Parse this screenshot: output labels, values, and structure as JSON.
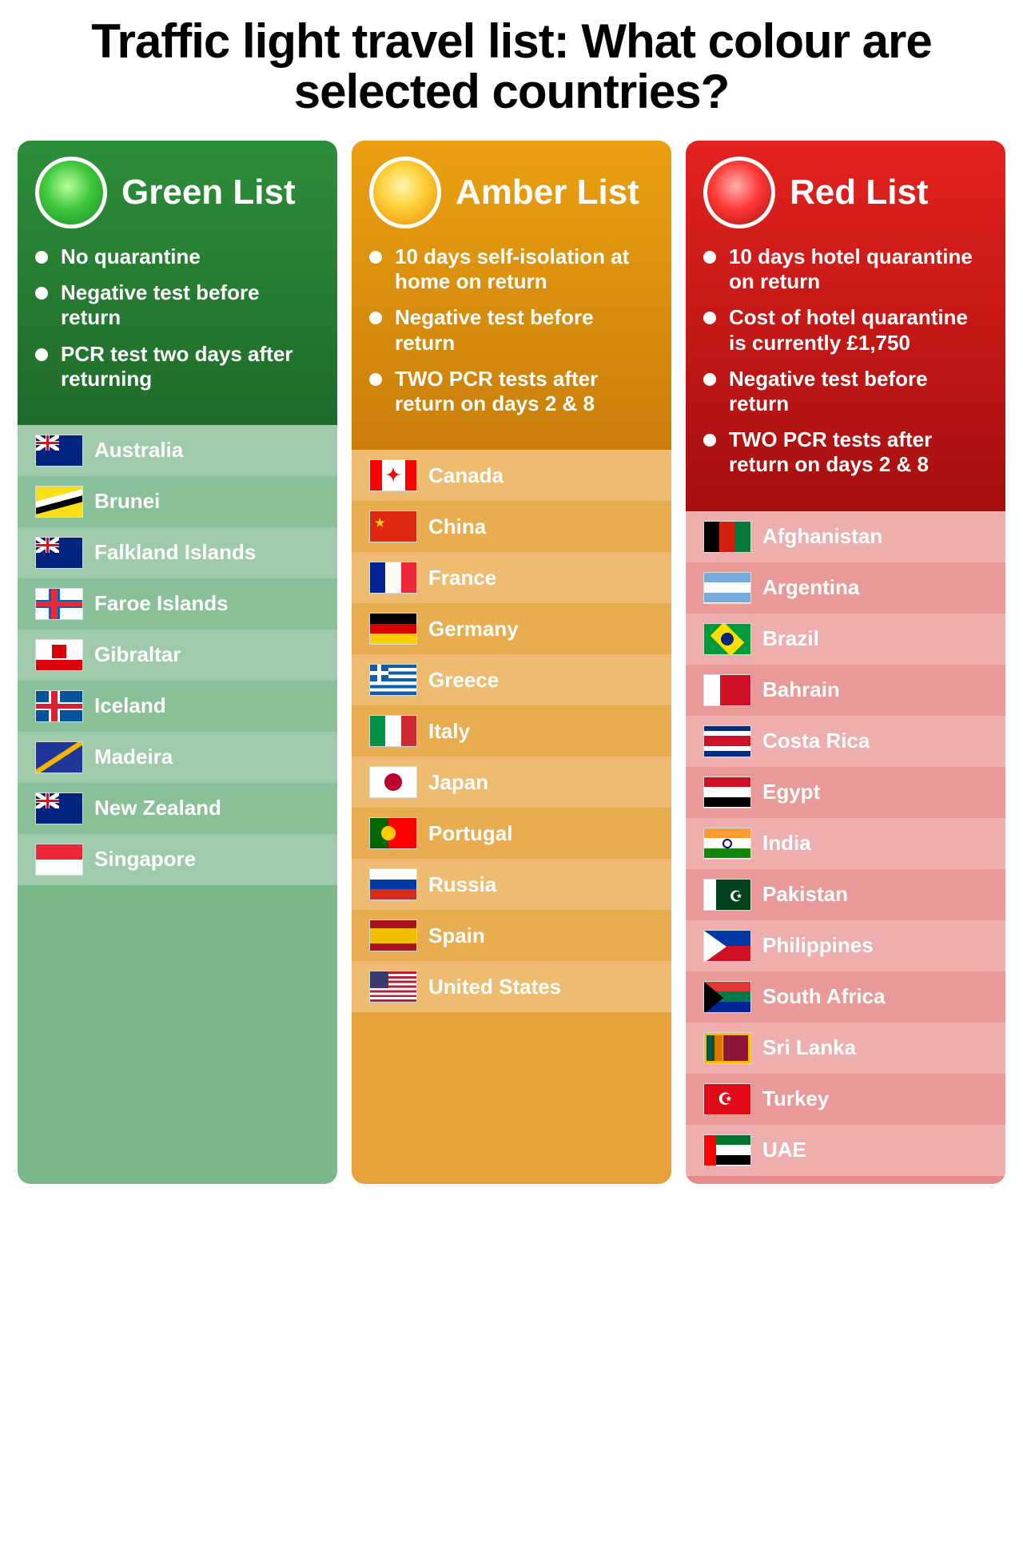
{
  "title": "Traffic light travel list: What colour are selected countries?",
  "columns": [
    {
      "id": "green",
      "title": "Green List",
      "header_bg": "linear-gradient(180deg,#2d8e3a 0%,#1f6b2a 100%)",
      "light_bg": "radial-gradient(circle at 45% 40%, #b7ff9a 0%, #3ec73c 45%, #1f8a28 100%)",
      "body_bg": "#7ab889",
      "stripe_a": "rgba(255,255,255,0.28)",
      "stripe_b": "rgba(255,255,255,0.12)",
      "rules": [
        "No quarantine",
        "Negative test before return",
        "PCR test two days after returning"
      ],
      "countries": [
        {
          "name": "Australia",
          "flag": "au"
        },
        {
          "name": "Brunei",
          "flag": "bn"
        },
        {
          "name": "Falkland Islands",
          "flag": "fk"
        },
        {
          "name": "Faroe Islands",
          "flag": "fo"
        },
        {
          "name": "Gibraltar",
          "flag": "gi"
        },
        {
          "name": "Iceland",
          "flag": "is"
        },
        {
          "name": "Madeira",
          "flag": "pt-30"
        },
        {
          "name": "New Zealand",
          "flag": "nz"
        },
        {
          "name": "Singapore",
          "flag": "sg"
        }
      ]
    },
    {
      "id": "amber",
      "title": "Amber List",
      "header_bg": "linear-gradient(180deg,#eaa011 0%,#c97e0a 100%)",
      "light_bg": "radial-gradient(circle at 45% 40%, #fff7b0 0%, #ffd23e 40%, #e68a00 100%)",
      "body_bg": "#e6a23a",
      "stripe_a": "rgba(255,255,255,0.28)",
      "stripe_b": "rgba(255,255,255,0.12)",
      "rules": [
        "10 days self-isolation at home on return",
        "Negative test before return",
        "TWO PCR tests after return on days 2 & 8"
      ],
      "countries": [
        {
          "name": "Canada",
          "flag": "ca"
        },
        {
          "name": "China",
          "flag": "cn"
        },
        {
          "name": "France",
          "flag": "fr"
        },
        {
          "name": "Germany",
          "flag": "de"
        },
        {
          "name": "Greece",
          "flag": "gr"
        },
        {
          "name": "Italy",
          "flag": "it"
        },
        {
          "name": "Japan",
          "flag": "jp"
        },
        {
          "name": "Portugal",
          "flag": "pt"
        },
        {
          "name": "Russia",
          "flag": "ru"
        },
        {
          "name": "Spain",
          "flag": "es"
        },
        {
          "name": "United States",
          "flag": "us"
        }
      ]
    },
    {
      "id": "red",
      "title": "Red List",
      "header_bg": "linear-gradient(180deg,#e3221f 0%,#a50f0f 100%)",
      "light_bg": "radial-gradient(circle at 45% 40%, #ffb0b0 0%, #ff3a36 45%, #a10e0e 100%)",
      "body_bg": "#e88b8b",
      "stripe_a": "rgba(255,255,255,0.3)",
      "stripe_b": "rgba(255,255,255,0.12)",
      "rules": [
        "10 days hotel quarantine on return",
        "Cost of hotel quarantine is currently £1,750",
        "Negative test before return",
        "TWO PCR tests after return on days 2 & 8"
      ],
      "countries": [
        {
          "name": "Afghanistan",
          "flag": "af"
        },
        {
          "name": "Argentina",
          "flag": "ar"
        },
        {
          "name": "Brazil",
          "flag": "br"
        },
        {
          "name": "Bahrain",
          "flag": "bh"
        },
        {
          "name": "Costa Rica",
          "flag": "cr"
        },
        {
          "name": "Egypt",
          "flag": "eg"
        },
        {
          "name": "India",
          "flag": "in"
        },
        {
          "name": "Pakistan",
          "flag": "pk"
        },
        {
          "name": "Philippines",
          "flag": "ph"
        },
        {
          "name": "South Africa",
          "flag": "za"
        },
        {
          "name": "Sri Lanka",
          "flag": "lk"
        },
        {
          "name": "Turkey",
          "flag": "tr"
        },
        {
          "name": "UAE",
          "flag": "ae"
        }
      ]
    }
  ]
}
